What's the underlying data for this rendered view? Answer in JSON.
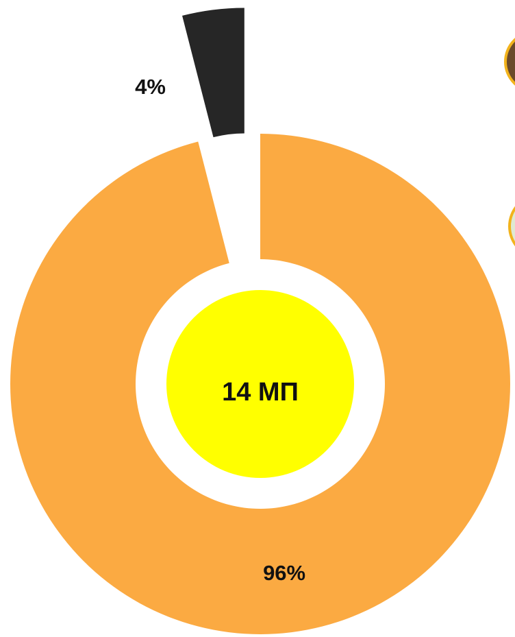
{
  "chart_data": {
    "type": "donut",
    "values": [
      96,
      4
    ],
    "value_labels": [
      "96%",
      "4%"
    ],
    "colors": [
      "#fbaa42",
      "#262626"
    ],
    "exploded": [
      false,
      true
    ],
    "center_label": "14 МП",
    "center_color": "#ffff00"
  }
}
